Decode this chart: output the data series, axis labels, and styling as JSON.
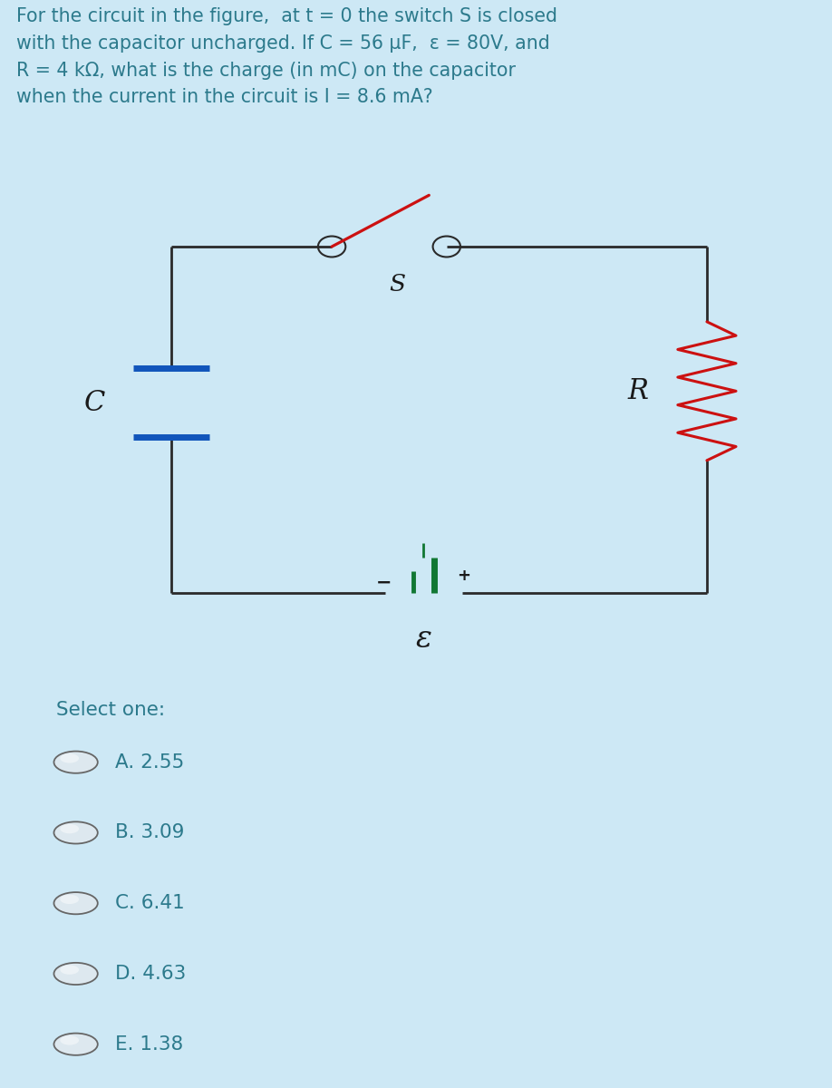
{
  "bg_color": "#cde8f5",
  "circuit_bg": "#f0f8ff",
  "title_lines": [
    "For the circuit in the figure,  at t = 0 the switch S is closed",
    "with the capacitor uncharged. If C = 56 μF,  ε = 80V, and",
    "R = 4 kΩ, what is the charge (in mC) on the capacitor",
    "when the current in the circuit is I = 8.6 mA?"
  ],
  "select_label": "Select one:",
  "options": [
    "A. 2.55",
    "B. 3.09",
    "C. 6.41",
    "D. 4.63",
    "E. 1.38"
  ],
  "text_color": "#2c7a8c",
  "circuit_line_color": "#2a2a2a",
  "capacitor_color": "#1155bb",
  "resistor_color": "#cc1111",
  "switch_color": "#cc1111",
  "battery_color": "#117733",
  "label_color": "#1a1a1a",
  "radio_fill": "#e0ecf4",
  "radio_edge": "#888888"
}
